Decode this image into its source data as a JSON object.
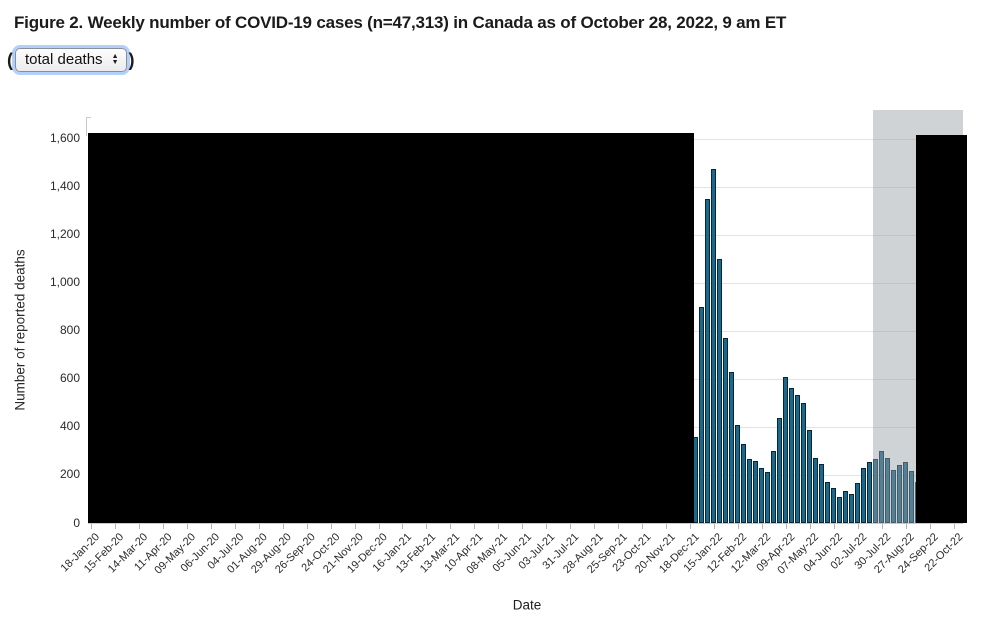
{
  "figure": {
    "title": "Figure 2. Weekly number of COVID-19 cases (n=47,313) in Canada as of October 28, 2022, 9 am ET",
    "subtitle_prefix": "(",
    "subtitle_suffix": ")",
    "metric_dropdown": {
      "selected_option": "total deaths",
      "arrow_up": "▲",
      "arrow_down": "▼"
    }
  },
  "chart_data": {
    "type": "bar",
    "xlabel": "Date",
    "ylabel": "Number of reported deaths",
    "ylim": [
      0,
      1700
    ],
    "grid": true,
    "legend": "none",
    "yticks": [
      0,
      200,
      400,
      600,
      800,
      1000,
      1200,
      1400,
      1600
    ],
    "ytick_labels": [
      "0",
      "200",
      "400",
      "600",
      "800",
      "1,000",
      "1,200",
      "1,400",
      "1,600"
    ],
    "xtick_labels": [
      "18-Jan-20",
      "15-Feb-20",
      "14-Mar-20",
      "11-Apr-20",
      "09-May-20",
      "06-Jun-20",
      "04-Jul-20",
      "01-Aug-20",
      "29-Aug-20",
      "26-Sep-20",
      "24-Oct-20",
      "21-Nov-20",
      "19-Dec-20",
      "16-Jan-21",
      "13-Feb-21",
      "13-Mar-21",
      "10-Apr-21",
      "08-May-21",
      "05-Jun-21",
      "03-Jul-21",
      "31-Jul-21",
      "28-Aug-21",
      "25-Sep-21",
      "23-Oct-21",
      "20-Nov-21",
      "18-Dec-21",
      "15-Jan-22",
      "12-Feb-22",
      "12-Mar-22",
      "09-Apr-22",
      "07-May-22",
      "04-Jun-22",
      "02-Jul-22",
      "30-Jul-22",
      "27-Aug-22",
      "24-Sep-22",
      "22-Oct-22"
    ],
    "weeks_total": 145,
    "first_visible_week_index": 101,
    "visible_bars": [
      {
        "date": "25-Dec-21",
        "value": 360
      },
      {
        "date": "01-Jan-22",
        "value": 900
      },
      {
        "date": "08-Jan-22",
        "value": 1350
      },
      {
        "date": "15-Jan-22",
        "value": 1475
      },
      {
        "date": "22-Jan-22",
        "value": 1100
      },
      {
        "date": "29-Jan-22",
        "value": 770
      },
      {
        "date": "05-Feb-22",
        "value": 628
      },
      {
        "date": "12-Feb-22",
        "value": 406
      },
      {
        "date": "19-Feb-22",
        "value": 330
      },
      {
        "date": "26-Feb-22",
        "value": 267
      },
      {
        "date": "05-Mar-22",
        "value": 258
      },
      {
        "date": "12-Mar-22",
        "value": 230
      },
      {
        "date": "19-Mar-22",
        "value": 214
      },
      {
        "date": "26-Mar-22",
        "value": 300
      },
      {
        "date": "02-Apr-22",
        "value": 436
      },
      {
        "date": "09-Apr-22",
        "value": 607
      },
      {
        "date": "16-Apr-22",
        "value": 560
      },
      {
        "date": "23-Apr-22",
        "value": 533
      },
      {
        "date": "30-Apr-22",
        "value": 500
      },
      {
        "date": "07-May-22",
        "value": 386
      },
      {
        "date": "14-May-22",
        "value": 272
      },
      {
        "date": "21-May-22",
        "value": 247
      },
      {
        "date": "28-May-22",
        "value": 172
      },
      {
        "date": "04-Jun-22",
        "value": 144
      },
      {
        "date": "11-Jun-22",
        "value": 108
      },
      {
        "date": "18-Jun-22",
        "value": 133
      },
      {
        "date": "25-Jun-22",
        "value": 119
      },
      {
        "date": "02-Jul-22",
        "value": 168
      },
      {
        "date": "09-Jul-22",
        "value": 230
      },
      {
        "date": "16-Jul-22",
        "value": 255
      },
      {
        "date": "23-Jul-22",
        "value": 265
      },
      {
        "date": "30-Jul-22",
        "value": 298
      },
      {
        "date": "06-Aug-22",
        "value": 270
      },
      {
        "date": "13-Aug-22",
        "value": 220
      },
      {
        "date": "20-Aug-22",
        "value": 243
      },
      {
        "date": "27-Aug-22",
        "value": 255
      },
      {
        "date": "03-Sep-22",
        "value": 215
      },
      {
        "date": "10-Sep-22",
        "value": 170
      }
    ],
    "masked_regions": [
      {
        "kind": "black",
        "from": "18-Jan-20",
        "to": "18-Dec-21"
      },
      {
        "kind": "black",
        "from": "10-Sep-22",
        "to": "22-Oct-22"
      }
    ],
    "shaded_band": {
      "kind": "gray",
      "from": "23-Jul-22",
      "to": "22-Oct-22"
    },
    "colors": {
      "bar_fill": "#1a698d",
      "bar_border": "#072736",
      "mask": "#000000",
      "band": "rgba(151,157,164,0.45)",
      "gridline": "#e2e2e2",
      "axis_line": "#c9c9c9",
      "text": "#2b2b2b"
    }
  }
}
